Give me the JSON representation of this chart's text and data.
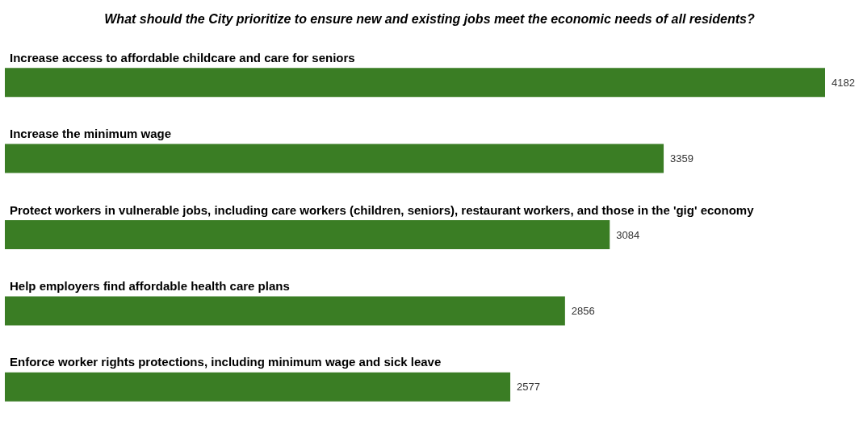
{
  "chart_data": {
    "type": "bar",
    "orientation": "horizontal",
    "title": "What should the City prioritize to ensure new and existing jobs meet the economic needs of all residents?",
    "categories": [
      "Increase access to affordable childcare and care for seniors",
      "Increase the minimum wage",
      "Protect workers in vulnerable jobs, including care workers (children, seniors), restaurant workers, and those in the 'gig' economy",
      "Help employers find affordable health care plans",
      "Enforce worker rights protections, including minimum wage and sick leave"
    ],
    "values": [
      4182,
      3359,
      3084,
      2856,
      2577
    ],
    "color": "#3a7d24",
    "data_labels": true
  }
}
